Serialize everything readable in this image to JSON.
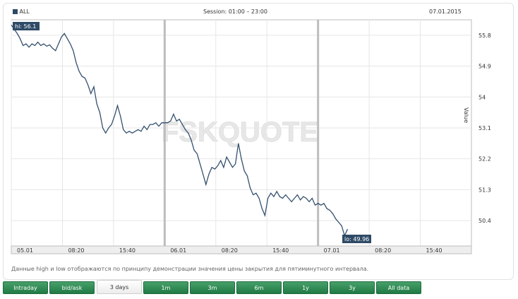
{
  "header": {
    "instrument": "ALL",
    "session": "Session: 01:00 – 23:00",
    "date": "07.01.2015"
  },
  "watermark": "FSKQUOTE",
  "note": "Данные high и low отображаются по принципу демонстрации значения цены закрытия для пятиминутного интервала.",
  "tabs": [
    "Intraday",
    "bid/ask",
    "3 days",
    "1m",
    "3m",
    "6m",
    "1y",
    "3y",
    "All data"
  ],
  "active_tab": "3 days",
  "colors": {
    "line": "#34506e",
    "label_bg": "#2e4a66",
    "tab_green": "#2f8a52"
  },
  "chart_data": {
    "type": "line",
    "ylabel": "Value",
    "ylim": [
      49.66,
      56.25
    ],
    "y_ticks": [
      50.4,
      51.3,
      52.2,
      53.1,
      54,
      54.9,
      55.8
    ],
    "x_ticks": [
      "05.01",
      "08:20",
      "15:40",
      "06.01",
      "08:20",
      "15:40",
      "07.01",
      "08:20",
      "15:40"
    ],
    "x_tick_index": [
      0,
      8.67,
      17.33,
      26,
      34.67,
      43.33,
      52,
      60.67,
      69.33
    ],
    "x_max": 78,
    "day_separators": [
      26,
      52
    ],
    "grid": true,
    "hi_label": "hi: 56.1",
    "lo_label": "lo: 49.96",
    "series": [
      {
        "values": [
          [
            0,
            56.1
          ],
          [
            0.6,
            55.95
          ],
          [
            1,
            55.85
          ],
          [
            1.5,
            55.7
          ],
          [
            2,
            55.5
          ],
          [
            2.5,
            55.55
          ],
          [
            3,
            55.45
          ],
          [
            3.5,
            55.55
          ],
          [
            4,
            55.5
          ],
          [
            4.5,
            55.6
          ],
          [
            5,
            55.5
          ],
          [
            5.5,
            55.55
          ],
          [
            6,
            55.48
          ],
          [
            6.5,
            55.52
          ],
          [
            7,
            55.42
          ],
          [
            7.5,
            55.35
          ],
          [
            8,
            55.55
          ],
          [
            8.5,
            55.75
          ],
          [
            9,
            55.85
          ],
          [
            9.5,
            55.7
          ],
          [
            10,
            55.55
          ],
          [
            10.5,
            55.35
          ],
          [
            11,
            55.0
          ],
          [
            11.5,
            54.75
          ],
          [
            12,
            54.6
          ],
          [
            12.5,
            54.55
          ],
          [
            13,
            54.35
          ],
          [
            13.5,
            54.1
          ],
          [
            14,
            54.3
          ],
          [
            14.5,
            53.8
          ],
          [
            15,
            53.55
          ],
          [
            15.5,
            53.1
          ],
          [
            16,
            52.95
          ],
          [
            16.5,
            53.1
          ],
          [
            17,
            53.2
          ],
          [
            17.5,
            53.45
          ],
          [
            18,
            53.75
          ],
          [
            18.5,
            53.45
          ],
          [
            19,
            53.05
          ],
          [
            19.5,
            52.95
          ],
          [
            20,
            53.0
          ],
          [
            20.5,
            52.95
          ],
          [
            21,
            53.0
          ],
          [
            21.5,
            53.05
          ],
          [
            22,
            53.0
          ],
          [
            22.5,
            53.15
          ],
          [
            23,
            53.05
          ],
          [
            23.5,
            53.2
          ],
          [
            24,
            53.2
          ],
          [
            24.5,
            53.25
          ],
          [
            25,
            53.15
          ],
          [
            25.5,
            53.25
          ],
          [
            26,
            53.25
          ],
          [
            26.5,
            53.25
          ],
          [
            27,
            53.3
          ],
          [
            27.5,
            53.5
          ],
          [
            28,
            53.3
          ],
          [
            28.5,
            53.35
          ],
          [
            29,
            53.2
          ],
          [
            29.5,
            53.05
          ],
          [
            30,
            52.95
          ],
          [
            30.5,
            52.75
          ],
          [
            31,
            52.45
          ],
          [
            31.5,
            52.35
          ],
          [
            32,
            52.05
          ],
          [
            32.5,
            51.75
          ],
          [
            33,
            51.45
          ],
          [
            33.5,
            51.75
          ],
          [
            34,
            51.95
          ],
          [
            34.5,
            51.9
          ],
          [
            35,
            52.0
          ],
          [
            35.5,
            52.15
          ],
          [
            36,
            51.95
          ],
          [
            36.5,
            52.25
          ],
          [
            37,
            52.1
          ],
          [
            37.5,
            51.95
          ],
          [
            38,
            52.05
          ],
          [
            38.5,
            52.65
          ],
          [
            39,
            52.2
          ],
          [
            39.5,
            51.85
          ],
          [
            40,
            51.7
          ],
          [
            40.5,
            51.35
          ],
          [
            41,
            51.15
          ],
          [
            41.5,
            51.2
          ],
          [
            42,
            51.05
          ],
          [
            42.5,
            50.75
          ],
          [
            43,
            50.55
          ],
          [
            43.5,
            51.05
          ],
          [
            44,
            51.2
          ],
          [
            44.5,
            51.1
          ],
          [
            45,
            51.25
          ],
          [
            45.5,
            51.1
          ],
          [
            46,
            51.05
          ],
          [
            46.5,
            51.15
          ],
          [
            47,
            51.05
          ],
          [
            47.5,
            50.95
          ],
          [
            48,
            51.05
          ],
          [
            48.5,
            51.15
          ],
          [
            49,
            51.0
          ],
          [
            49.5,
            51.1
          ],
          [
            50,
            51.05
          ],
          [
            50.5,
            50.95
          ],
          [
            51,
            51.05
          ],
          [
            51.5,
            50.85
          ],
          [
            52,
            50.9
          ],
          [
            52.5,
            50.85
          ],
          [
            53,
            50.9
          ],
          [
            53.5,
            50.75
          ],
          [
            54,
            50.7
          ],
          [
            54.5,
            50.6
          ],
          [
            55,
            50.45
          ],
          [
            55.5,
            50.35
          ],
          [
            56,
            50.25
          ],
          [
            56.5,
            49.96
          ],
          [
            57,
            50.15
          ]
        ]
      }
    ]
  }
}
